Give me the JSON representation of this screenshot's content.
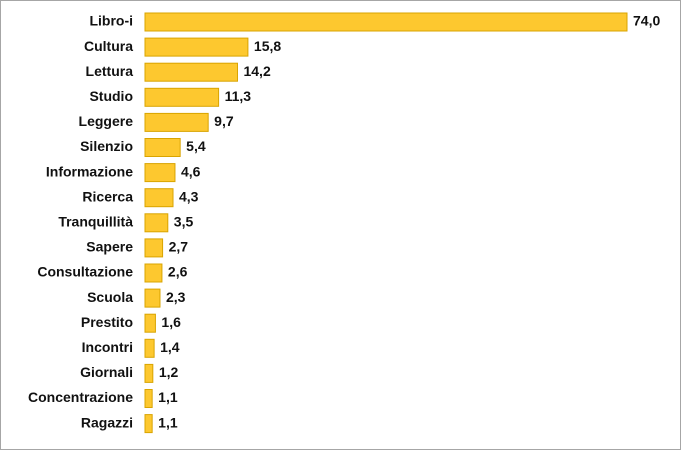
{
  "chart_data": {
    "type": "bar",
    "orientation": "horizontal",
    "color": "#fdc82f",
    "edge_color": "#d9a400",
    "categories": [
      "Libro-i",
      "Cultura",
      "Lettura",
      "Studio",
      "Leggere",
      "Silenzio",
      "Informazione",
      "Ricerca",
      "Tranquillità",
      "Sapere",
      "Consultazione",
      "Scuola",
      "Prestito",
      "Incontri",
      "Giornali",
      "Concentrazione",
      "Ragazzi"
    ],
    "values": [
      74.0,
      15.8,
      14.2,
      11.3,
      9.7,
      5.4,
      4.6,
      4.3,
      3.5,
      2.7,
      2.6,
      2.3,
      1.6,
      1.4,
      1.2,
      1.1,
      1.1
    ],
    "value_labels": [
      "74,0",
      "15,8",
      "14,2",
      "11,3",
      "9,7",
      "5,4",
      "4,6",
      "4,3",
      "3,5",
      "2,7",
      "2,6",
      "2,3",
      "1,6",
      "1,4",
      "1,2",
      "1,1",
      "1,1"
    ]
  }
}
